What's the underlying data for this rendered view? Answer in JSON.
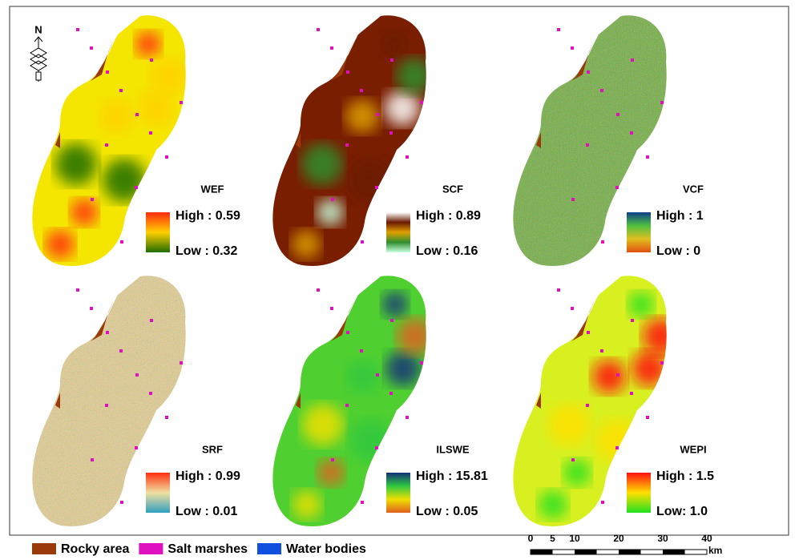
{
  "north": "N",
  "panels": [
    {
      "title": "WEF",
      "high": "High : 0.59",
      "low": "Low : 0.32",
      "colors": [
        "#ff2a10",
        "#ffd000",
        "#1f6d00"
      ],
      "base": "#f4e600",
      "noise": false
    },
    {
      "title": "SCF",
      "high": "High : 0.89",
      "low": "Low : 0.16",
      "colors": [
        "#ffffff",
        "#6b1a00",
        "#e0a000",
        "#2f8f2f",
        "#c8ffe0"
      ],
      "base": "#7a1e00",
      "noise": false
    },
    {
      "title": "VCF",
      "high": "High : 1",
      "low": "Low : 0",
      "colors": [
        "#0d3f8a",
        "#4fc040",
        "#e0c020",
        "#e05010"
      ],
      "base": "#6fae3a",
      "noise": true
    },
    {
      "title": "SRF",
      "high": "High : 0.99",
      "low": "Low : 0.01",
      "colors": [
        "#ff3010",
        "#f0e0a0",
        "#30a0c0"
      ],
      "base": "#e8d090",
      "noise": true
    },
    {
      "title": "ILSWE",
      "high": "High : 15.81",
      "low": "Low : 0.05",
      "colors": [
        "#12307a",
        "#30c840",
        "#f0e000",
        "#e06020"
      ],
      "base": "#50d030",
      "noise": false
    },
    {
      "title": "WEPI",
      "high": "High : 1.5",
      "low": "Low: 1.0",
      "colors": [
        "#ff1010",
        "#ffe000",
        "#20e020"
      ],
      "base": "#d8f020",
      "noise": false
    }
  ],
  "legend": [
    {
      "label": "Rocky area",
      "color": "#9a3a08"
    },
    {
      "label": "Salt marshes",
      "color": "#e010c0"
    },
    {
      "label": "Water bodies",
      "color": "#1050e0"
    }
  ],
  "scale": {
    "ticks": [
      "0",
      "5",
      "10",
      "20",
      "30",
      "40"
    ],
    "unit": "km"
  }
}
